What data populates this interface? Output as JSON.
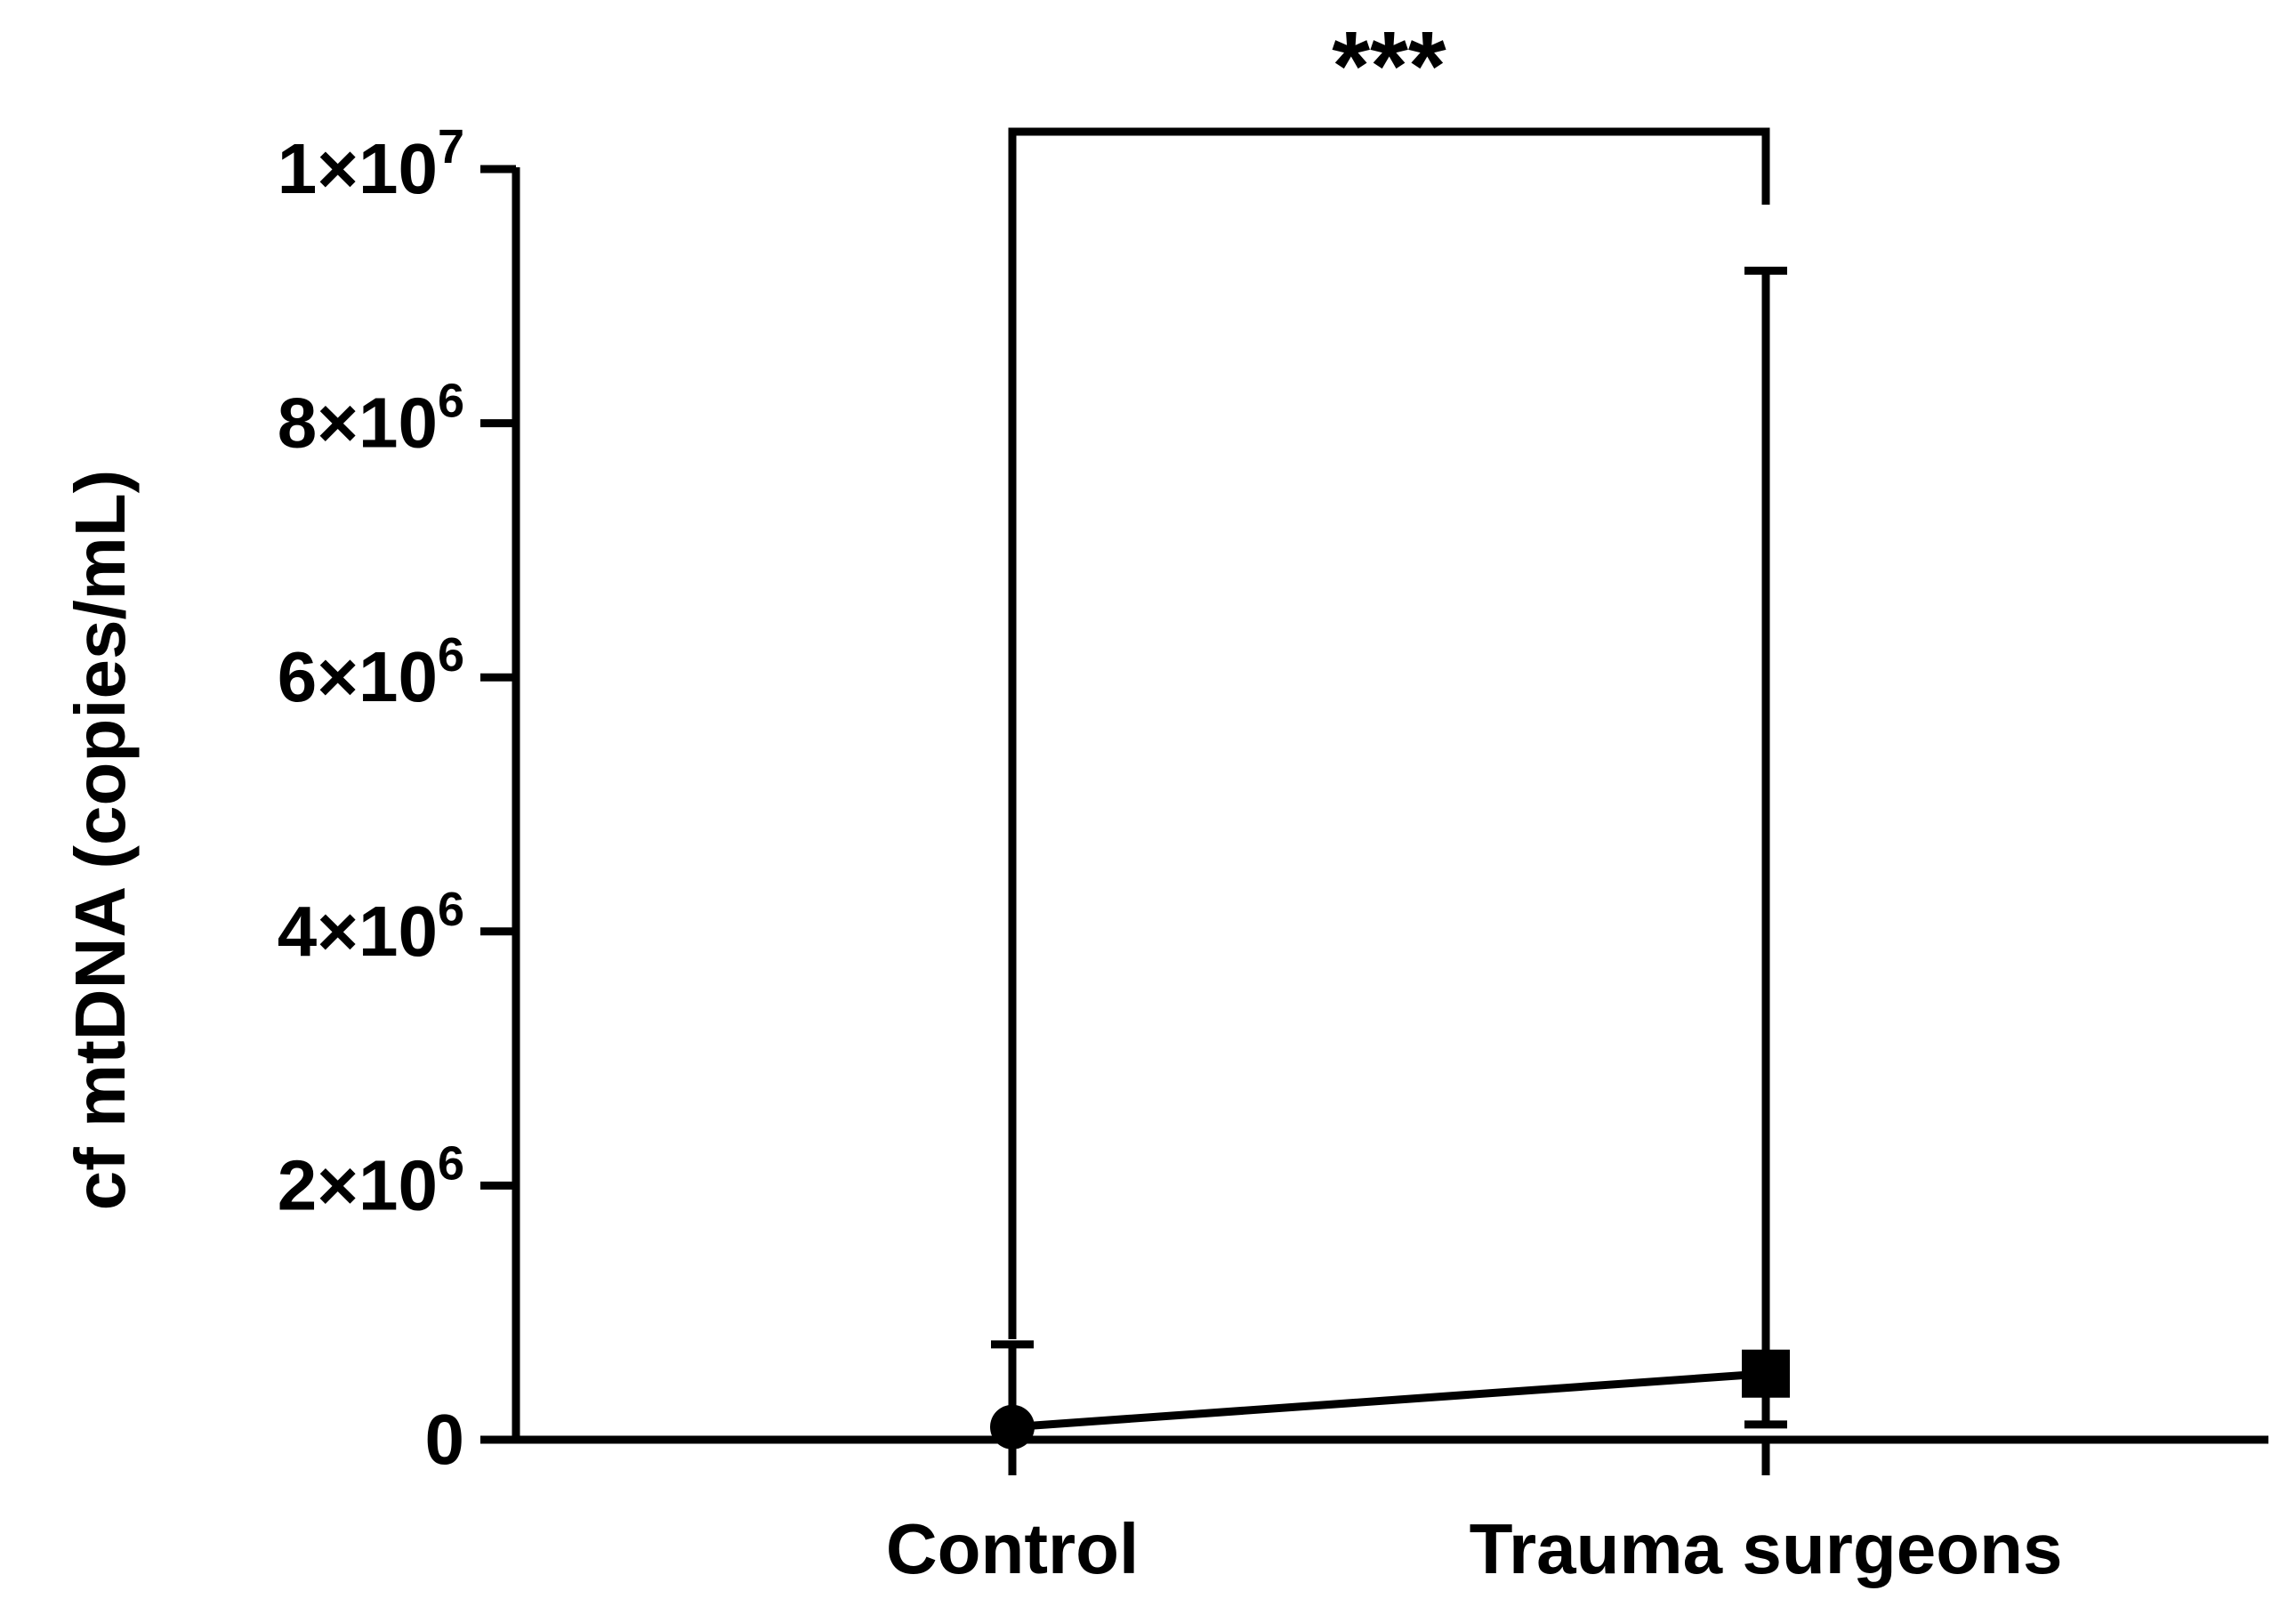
{
  "chart_data": {
    "type": "line",
    "title": "",
    "xlabel": "",
    "ylabel": "cf mtDNA (copies/mL)",
    "categories": [
      "Control",
      "Trauma surgeons"
    ],
    "series": [
      {
        "values": [
          100000,
          520000
        ],
        "error_low": [
          0,
          120000
        ],
        "error_high": [
          750000,
          9200000
        ],
        "markers": [
          "circle",
          "square"
        ]
      }
    ],
    "ylim": [
      0,
      10000000
    ],
    "yticks": [
      {
        "value": 0,
        "mantissa": "0",
        "exponent": ""
      },
      {
        "value": 2000000,
        "mantissa": "2×10",
        "exponent": "6"
      },
      {
        "value": 4000000,
        "mantissa": "4×10",
        "exponent": "6"
      },
      {
        "value": 6000000,
        "mantissa": "6×10",
        "exponent": "6"
      },
      {
        "value": 8000000,
        "mantissa": "8×10",
        "exponent": "6"
      },
      {
        "value": 10000000,
        "mantissa": "1×10",
        "exponent": "7"
      }
    ],
    "significance": {
      "between": [
        "Control",
        "Trauma surgeons"
      ],
      "label": "***"
    },
    "grid": false,
    "legend": "none",
    "color": "#000000"
  }
}
